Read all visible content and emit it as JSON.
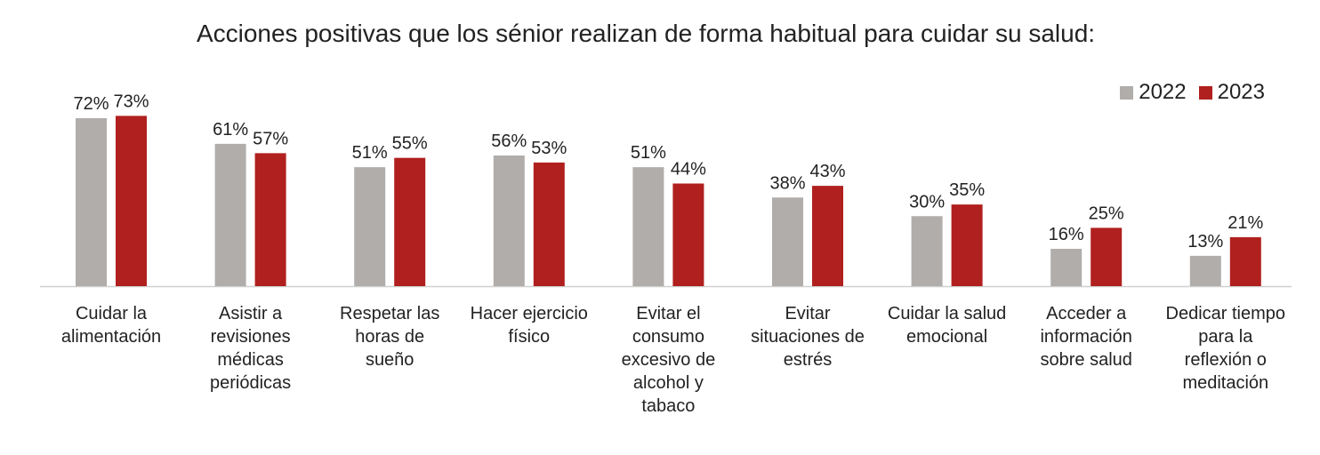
{
  "chart_data": {
    "type": "bar",
    "title": "Acciones positivas que los sénior realizan de forma habitual para cuidar su salud:",
    "xlabel": "",
    "ylabel": "",
    "ylim": [
      0,
      100
    ],
    "grid": false,
    "legend_position": "top-right",
    "categories": [
      [
        "Cuidar la",
        "alimentación"
      ],
      [
        "Asistir a",
        "revisiones",
        "médicas",
        "periódicas"
      ],
      [
        "Respetar las",
        "horas de",
        "sueño"
      ],
      [
        "Hacer ejercicio",
        "físico"
      ],
      [
        "Evitar el",
        "consumo",
        "excesivo de",
        "alcohol y",
        "tabaco"
      ],
      [
        "Evitar",
        "situaciones de",
        "estrés"
      ],
      [
        "Cuidar la salud",
        "emocional"
      ],
      [
        "Acceder a",
        "información",
        "sobre salud"
      ],
      [
        "Dedicar tiempo",
        "para la",
        "reflexión o",
        "meditación"
      ]
    ],
    "series": [
      {
        "name": "2022",
        "color": "#b0adab",
        "values": [
          72,
          61,
          51,
          56,
          51,
          38,
          30,
          16,
          13
        ],
        "labels": [
          "72%",
          "61%",
          "51%",
          "56%",
          "51%",
          "38%",
          "30%",
          "16%",
          "13%"
        ]
      },
      {
        "name": "2023",
        "color": "#b0201e",
        "values": [
          73,
          57,
          55,
          53,
          44,
          43,
          35,
          25,
          21
        ],
        "labels": [
          "73%",
          "57%",
          "55%",
          "53%",
          "44%",
          "43%",
          "35%",
          "25%",
          "21%"
        ]
      }
    ]
  }
}
